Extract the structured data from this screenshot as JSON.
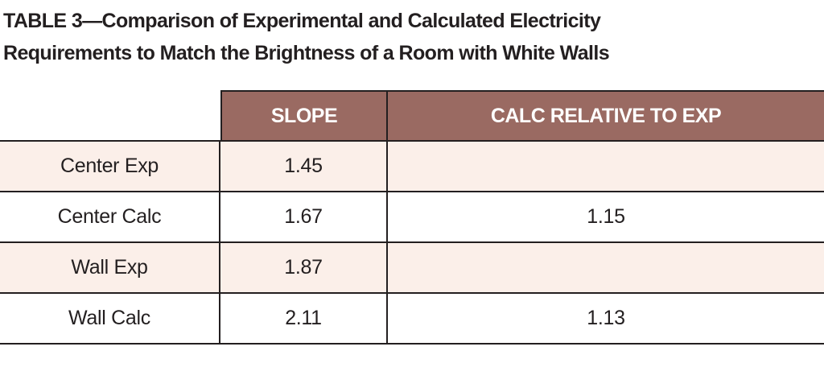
{
  "title": {
    "line1": "TABLE 3—Comparison of Experimental and Calculated Electricity",
    "line2": "Requirements to Match the Brightness of a Room with White Walls"
  },
  "colors": {
    "header_bg": "#9a6a62",
    "header_text": "#ffffff",
    "shaded_row_bg": "#fbefe9",
    "border": "#231f20"
  },
  "table": {
    "headers": [
      "",
      "SLOPE",
      "CALC RELATIVE TO EXP"
    ],
    "rows": [
      {
        "label": "Center Exp",
        "slope": "1.45",
        "calc_relative": ""
      },
      {
        "label": "Center Calc",
        "slope": "1.67",
        "calc_relative": "1.15"
      },
      {
        "label": "Wall Exp",
        "slope": "1.87",
        "calc_relative": ""
      },
      {
        "label": "Wall Calc",
        "slope": "2.11",
        "calc_relative": "1.13"
      }
    ]
  }
}
